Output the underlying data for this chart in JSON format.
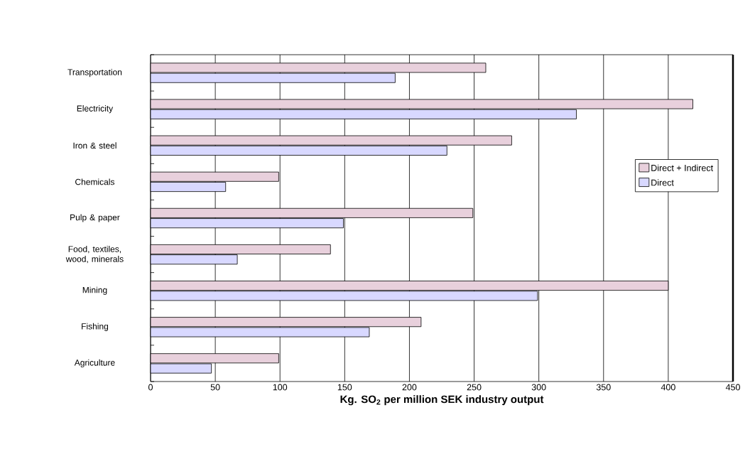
{
  "chart_data": {
    "type": "bar",
    "orientation": "horizontal",
    "xlabel": "Kg. SO$_{2}$ per million SEK industry output",
    "categories": [
      "Transportation",
      "Electricity",
      "Iron & steel",
      "Chemicals",
      "Pulp & paper",
      "Food, textiles, wood, minerals",
      "Mining",
      "Fishing",
      "Agriculture"
    ],
    "series": [
      {
        "name": "Direct + Indirect",
        "color": "#e8d0dc",
        "values": [
          259,
          419,
          279,
          99,
          249,
          139,
          400,
          209,
          99
        ]
      },
      {
        "name": "Direct",
        "color": "#d8d8ff",
        "values": [
          189,
          329,
          229,
          58,
          149,
          67,
          299,
          169,
          47
        ]
      }
    ],
    "xlim": [
      0,
      450
    ],
    "xticks": [
      0,
      50,
      100,
      150,
      200,
      250,
      300,
      350,
      400,
      450
    ],
    "grid": "x",
    "legend": "right"
  }
}
